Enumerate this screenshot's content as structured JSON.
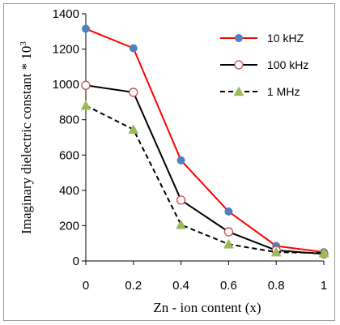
{
  "chart_data": {
    "type": "line",
    "title": "",
    "xlabel": "Zn - ion content (x)",
    "ylabel": "Imaginary dielectric constant * 10",
    "ylabel_superscript": "3",
    "x": [
      0,
      0.2,
      0.4,
      0.6,
      0.8,
      1
    ],
    "x_tick_labels": [
      "0",
      "0.2",
      "0.4",
      "0.6",
      "0.8",
      "1"
    ],
    "y_tick_labels": [
      "0",
      "200",
      "400",
      "600",
      "800",
      "1000",
      "1200",
      "1400"
    ],
    "xlim": [
      0,
      1
    ],
    "ylim": [
      0,
      1400
    ],
    "grid": false,
    "legend_position": "top-right",
    "series": [
      {
        "name": "10 kHZ",
        "values": [
          1315,
          1205,
          570,
          280,
          85,
          50
        ],
        "color": "#ff0000",
        "line_style": "solid",
        "marker": "filled-circle",
        "marker_color": "#4f81bd"
      },
      {
        "name": "100 kHz",
        "values": [
          995,
          955,
          345,
          165,
          60,
          40
        ],
        "color": "#000000",
        "line_style": "solid",
        "marker": "hollow-circle",
        "marker_color": "#c0504d"
      },
      {
        "name": "1 MHz",
        "values": [
          880,
          745,
          205,
          95,
          50,
          45
        ],
        "color": "#000000",
        "line_style": "dashed",
        "marker": "filled-triangle",
        "marker_color": "#9bbb59"
      }
    ]
  }
}
